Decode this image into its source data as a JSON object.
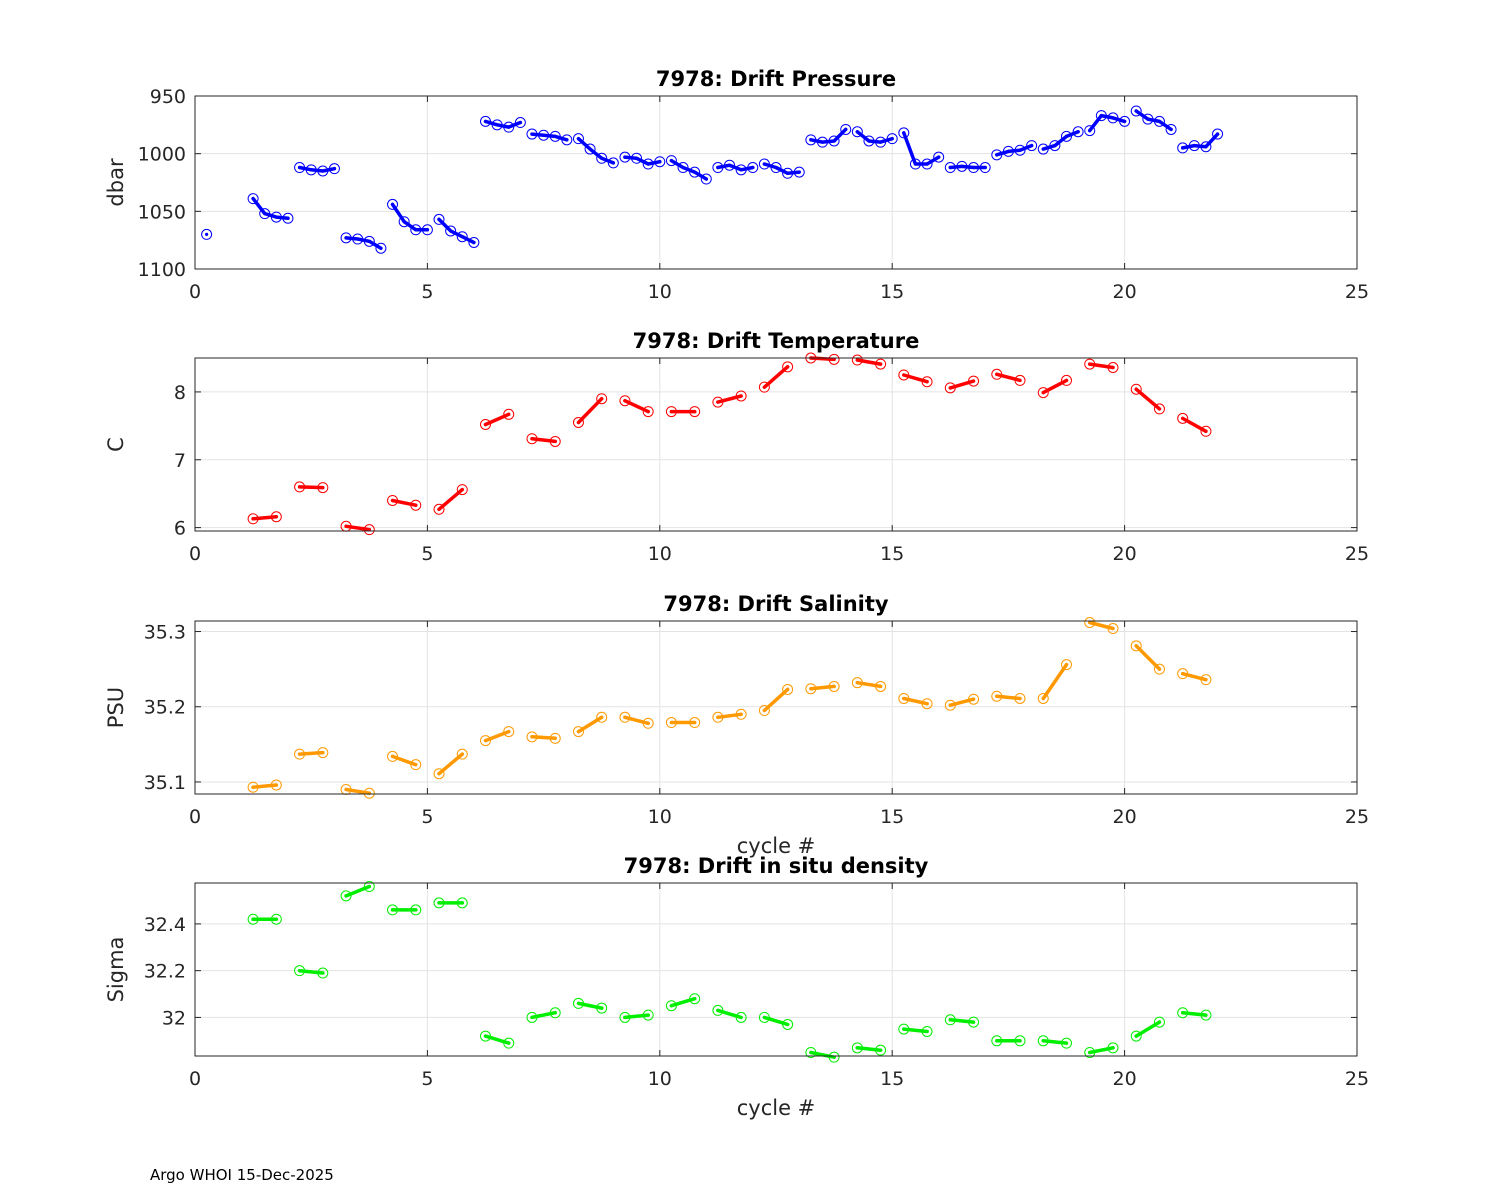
{
  "footer": "Argo WHOI 15-Dec-2025",
  "chart_data": [
    {
      "type": "line",
      "title": "7978: Drift Pressure",
      "xlabel": "",
      "ylabel": "dbar",
      "xlim": [
        0,
        25
      ],
      "ylim": [
        950,
        1100
      ],
      "y_reversed": true,
      "xticks": [
        0,
        5,
        10,
        15,
        20,
        25
      ],
      "yticks": [
        950,
        1000,
        1050,
        1100
      ],
      "ytick_labels": [
        "950",
        "1000",
        "1050",
        "1100"
      ],
      "grid": true,
      "color": "#0000ff",
      "segments": [
        [
          [
            0.25,
            1070
          ]
        ],
        [
          [
            1.25,
            1039
          ],
          [
            1.5,
            1052
          ],
          [
            1.75,
            1055
          ],
          [
            2.0,
            1056
          ]
        ],
        [
          [
            2.25,
            1012
          ],
          [
            2.5,
            1014
          ],
          [
            2.75,
            1015
          ],
          [
            3.0,
            1013
          ]
        ],
        [
          [
            3.25,
            1073
          ],
          [
            3.5,
            1074
          ],
          [
            3.75,
            1076
          ],
          [
            4.0,
            1082
          ]
        ],
        [
          [
            4.25,
            1044
          ],
          [
            4.5,
            1059
          ],
          [
            4.75,
            1066
          ],
          [
            5.0,
            1066
          ]
        ],
        [
          [
            5.25,
            1057
          ],
          [
            5.5,
            1067
          ],
          [
            5.75,
            1072
          ],
          [
            6.0,
            1077
          ]
        ],
        [
          [
            6.25,
            972
          ],
          [
            6.5,
            975
          ],
          [
            6.75,
            977
          ],
          [
            7.0,
            973
          ]
        ],
        [
          [
            7.25,
            983
          ],
          [
            7.5,
            984
          ],
          [
            7.75,
            985
          ],
          [
            8.0,
            988
          ]
        ],
        [
          [
            8.25,
            987
          ],
          [
            8.5,
            996
          ],
          [
            8.75,
            1004
          ],
          [
            9.0,
            1008
          ]
        ],
        [
          [
            9.25,
            1003
          ],
          [
            9.5,
            1004
          ],
          [
            9.75,
            1009
          ],
          [
            10.0,
            1007
          ]
        ],
        [
          [
            10.25,
            1006
          ],
          [
            10.5,
            1012
          ],
          [
            10.75,
            1016
          ],
          [
            11.0,
            1022
          ]
        ],
        [
          [
            11.25,
            1012
          ],
          [
            11.5,
            1010
          ],
          [
            11.75,
            1014
          ],
          [
            12.0,
            1012
          ]
        ],
        [
          [
            12.25,
            1009
          ],
          [
            12.5,
            1012
          ],
          [
            12.75,
            1017
          ],
          [
            13.0,
            1016
          ]
        ],
        [
          [
            13.25,
            988
          ],
          [
            13.5,
            990
          ],
          [
            13.75,
            989
          ],
          [
            14.0,
            979
          ]
        ],
        [
          [
            14.25,
            981
          ],
          [
            14.5,
            989
          ],
          [
            14.75,
            990
          ],
          [
            15.0,
            987
          ]
        ],
        [
          [
            15.25,
            982
          ],
          [
            15.5,
            1009
          ],
          [
            15.75,
            1009
          ],
          [
            16.0,
            1003
          ]
        ],
        [
          [
            16.25,
            1012
          ],
          [
            16.5,
            1011
          ],
          [
            16.75,
            1012
          ],
          [
            17.0,
            1012
          ]
        ],
        [
          [
            17.25,
            1001
          ],
          [
            17.5,
            998
          ],
          [
            17.75,
            997
          ],
          [
            18.0,
            993
          ]
        ],
        [
          [
            18.25,
            996
          ],
          [
            18.5,
            993
          ],
          [
            18.75,
            985
          ],
          [
            19.0,
            981
          ]
        ],
        [
          [
            19.25,
            980
          ],
          [
            19.5,
            967
          ],
          [
            19.75,
            969
          ],
          [
            20.0,
            972
          ]
        ],
        [
          [
            20.25,
            963
          ],
          [
            20.5,
            970
          ],
          [
            20.75,
            972
          ],
          [
            21.0,
            979
          ]
        ],
        [
          [
            21.25,
            995
          ],
          [
            21.5,
            993
          ],
          [
            21.75,
            994
          ],
          [
            22.0,
            983
          ]
        ]
      ]
    },
    {
      "type": "line",
      "title": "7978: Drift Temperature",
      "xlabel": "",
      "ylabel": "C",
      "xlim": [
        0,
        25
      ],
      "ylim": [
        5.95,
        8.5
      ],
      "y_reversed": false,
      "xticks": [
        0,
        5,
        10,
        15,
        20,
        25
      ],
      "yticks": [
        6,
        7,
        8
      ],
      "ytick_labels": [
        "6",
        "7",
        "8"
      ],
      "grid": true,
      "color": "#ff0000",
      "segments": [
        [
          [
            1.25,
            6.13
          ],
          [
            1.75,
            6.16
          ]
        ],
        [
          [
            2.25,
            6.6
          ],
          [
            2.75,
            6.59
          ]
        ],
        [
          [
            3.25,
            6.02
          ],
          [
            3.75,
            5.97
          ]
        ],
        [
          [
            4.25,
            6.4
          ],
          [
            4.75,
            6.33
          ]
        ],
        [
          [
            5.25,
            6.27
          ],
          [
            5.75,
            6.56
          ]
        ],
        [
          [
            6.25,
            7.52
          ],
          [
            6.75,
            7.67
          ]
        ],
        [
          [
            7.25,
            7.31
          ],
          [
            7.75,
            7.27
          ]
        ],
        [
          [
            8.25,
            7.55
          ],
          [
            8.75,
            7.9
          ]
        ],
        [
          [
            9.25,
            7.87
          ],
          [
            9.75,
            7.71
          ]
        ],
        [
          [
            10.25,
            7.71
          ],
          [
            10.75,
            7.71
          ]
        ],
        [
          [
            11.25,
            7.85
          ],
          [
            11.75,
            7.94
          ]
        ],
        [
          [
            12.25,
            8.07
          ],
          [
            12.75,
            8.37
          ]
        ],
        [
          [
            13.25,
            8.5
          ],
          [
            13.75,
            8.48
          ]
        ],
        [
          [
            14.25,
            8.47
          ],
          [
            14.75,
            8.41
          ]
        ],
        [
          [
            15.25,
            8.25
          ],
          [
            15.75,
            8.15
          ]
        ],
        [
          [
            16.25,
            8.06
          ],
          [
            16.75,
            8.16
          ]
        ],
        [
          [
            17.25,
            8.26
          ],
          [
            17.75,
            8.17
          ]
        ],
        [
          [
            18.25,
            7.99
          ],
          [
            18.75,
            8.17
          ]
        ],
        [
          [
            19.25,
            8.41
          ],
          [
            19.75,
            8.36
          ]
        ],
        [
          [
            20.25,
            8.04
          ],
          [
            20.75,
            7.75
          ]
        ],
        [
          [
            21.25,
            7.61
          ],
          [
            21.75,
            7.42
          ]
        ]
      ]
    },
    {
      "type": "line",
      "title": "7978: Drift Salinity",
      "xlabel": "cycle #",
      "ylabel": "PSU",
      "xlim": [
        0,
        25
      ],
      "ylim": [
        35.084,
        35.314
      ],
      "y_reversed": false,
      "xticks": [
        0,
        5,
        10,
        15,
        20,
        25
      ],
      "yticks": [
        35.1,
        35.2,
        35.3
      ],
      "ytick_labels": [
        "35.1",
        "35.2",
        "35.3"
      ],
      "grid": true,
      "color": "#ff9900",
      "segments": [
        [
          [
            1.25,
            35.093
          ],
          [
            1.75,
            35.096
          ]
        ],
        [
          [
            2.25,
            35.137
          ],
          [
            2.75,
            35.139
          ]
        ],
        [
          [
            3.25,
            35.09
          ],
          [
            3.75,
            35.085
          ]
        ],
        [
          [
            4.25,
            35.134
          ],
          [
            4.75,
            35.123
          ]
        ],
        [
          [
            5.25,
            35.111
          ],
          [
            5.75,
            35.137
          ]
        ],
        [
          [
            6.25,
            35.155
          ],
          [
            6.75,
            35.167
          ]
        ],
        [
          [
            7.25,
            35.16
          ],
          [
            7.75,
            35.158
          ]
        ],
        [
          [
            8.25,
            35.167
          ],
          [
            8.75,
            35.186
          ]
        ],
        [
          [
            9.25,
            35.186
          ],
          [
            9.75,
            35.178
          ]
        ],
        [
          [
            10.25,
            35.179
          ],
          [
            10.75,
            35.179
          ]
        ],
        [
          [
            11.25,
            35.186
          ],
          [
            11.75,
            35.19
          ]
        ],
        [
          [
            12.25,
            35.195
          ],
          [
            12.75,
            35.223
          ]
        ],
        [
          [
            13.25,
            35.224
          ],
          [
            13.75,
            35.227
          ]
        ],
        [
          [
            14.25,
            35.232
          ],
          [
            14.75,
            35.227
          ]
        ],
        [
          [
            15.25,
            35.211
          ],
          [
            15.75,
            35.204
          ]
        ],
        [
          [
            16.25,
            35.202
          ],
          [
            16.75,
            35.21
          ]
        ],
        [
          [
            17.25,
            35.214
          ],
          [
            17.75,
            35.211
          ]
        ],
        [
          [
            18.25,
            35.211
          ],
          [
            18.75,
            35.256
          ]
        ],
        [
          [
            19.25,
            35.312
          ],
          [
            19.75,
            35.304
          ]
        ],
        [
          [
            20.25,
            35.281
          ],
          [
            20.75,
            35.25
          ]
        ],
        [
          [
            21.25,
            35.244
          ],
          [
            21.75,
            35.236
          ]
        ]
      ]
    },
    {
      "type": "line",
      "title": "7978: Drift in situ density",
      "xlabel": "cycle #",
      "ylabel": "Sigma",
      "xlim": [
        0,
        25
      ],
      "ylim": [
        31.835,
        32.575
      ],
      "y_reversed": false,
      "xticks": [
        0,
        5,
        10,
        15,
        20,
        25
      ],
      "yticks": [
        32.0,
        32.2,
        32.4
      ],
      "ytick_labels": [
        "32",
        "32.2",
        "32.4"
      ],
      "grid": true,
      "color": "#00ee00",
      "segments": [
        [
          [
            1.25,
            32.42
          ],
          [
            1.75,
            32.42
          ]
        ],
        [
          [
            2.25,
            32.2
          ],
          [
            2.75,
            32.19
          ]
        ],
        [
          [
            3.25,
            32.52
          ],
          [
            3.75,
            32.56
          ]
        ],
        [
          [
            4.25,
            32.46
          ],
          [
            4.75,
            32.46
          ]
        ],
        [
          [
            5.25,
            32.49
          ],
          [
            5.75,
            32.49
          ]
        ],
        [
          [
            6.25,
            31.92
          ],
          [
            6.75,
            31.89
          ]
        ],
        [
          [
            7.25,
            32.0
          ],
          [
            7.75,
            32.02
          ]
        ],
        [
          [
            8.25,
            32.06
          ],
          [
            8.75,
            32.04
          ]
        ],
        [
          [
            9.25,
            32.0
          ],
          [
            9.75,
            32.01
          ]
        ],
        [
          [
            10.25,
            32.05
          ],
          [
            10.75,
            32.08
          ]
        ],
        [
          [
            11.25,
            32.03
          ],
          [
            11.75,
            32.0
          ]
        ],
        [
          [
            12.25,
            32.0
          ],
          [
            12.75,
            31.97
          ]
        ],
        [
          [
            13.25,
            31.85
          ],
          [
            13.75,
            31.83
          ]
        ],
        [
          [
            14.25,
            31.87
          ],
          [
            14.75,
            31.86
          ]
        ],
        [
          [
            15.25,
            31.95
          ],
          [
            15.75,
            31.94
          ]
        ],
        [
          [
            16.25,
            31.99
          ],
          [
            16.75,
            31.98
          ]
        ],
        [
          [
            17.25,
            31.9
          ],
          [
            17.75,
            31.9
          ]
        ],
        [
          [
            18.25,
            31.9
          ],
          [
            18.75,
            31.89
          ]
        ],
        [
          [
            19.25,
            31.85
          ],
          [
            19.75,
            31.87
          ]
        ],
        [
          [
            20.25,
            31.92
          ],
          [
            20.75,
            31.98
          ]
        ],
        [
          [
            21.25,
            32.02
          ],
          [
            21.75,
            32.01
          ]
        ]
      ]
    }
  ]
}
